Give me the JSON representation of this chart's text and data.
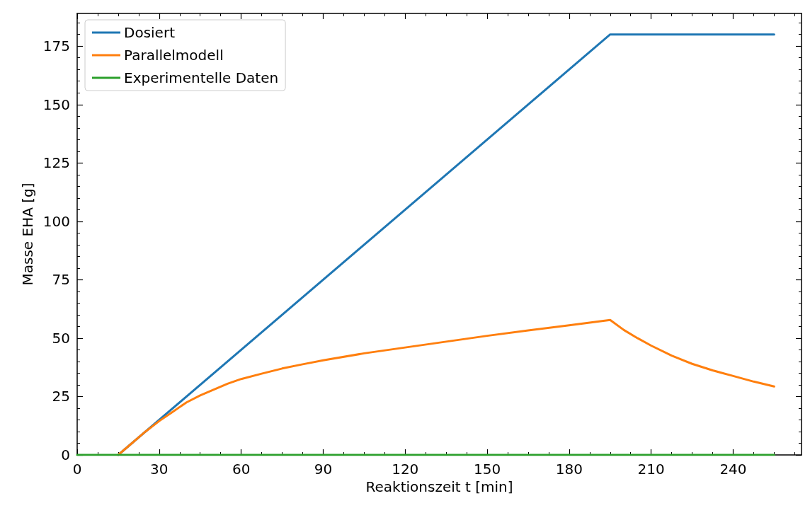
{
  "chart_data": {
    "type": "line",
    "xlabel": "Reaktionszeit t [min]",
    "ylabel": "Masse EHA [g]",
    "xlim": [
      0,
      265
    ],
    "xticks": [
      0,
      30,
      60,
      90,
      120,
      150,
      180,
      210,
      240
    ],
    "ylim": [
      0,
      189
    ],
    "yticks": [
      0,
      25,
      50,
      75,
      100,
      125,
      150,
      175
    ],
    "grid": false,
    "legend": "top left",
    "marker": "none",
    "line_style": "solid",
    "series": [
      {
        "name": "Dosiert",
        "color": "#1f77b4",
        "x": [
          15,
          195,
          255
        ],
        "values": [
          0,
          180,
          180
        ]
      },
      {
        "name": "Parallelmodell",
        "color": "#ff7f0e",
        "x": [
          15,
          20,
          25,
          30,
          35,
          40,
          45,
          50,
          55,
          60,
          67.5,
          75,
          82.5,
          90,
          105,
          120,
          135,
          150,
          165,
          180,
          195,
          200,
          205,
          210,
          217.5,
          225,
          232.5,
          240,
          247.5,
          255
        ],
        "values": [
          0,
          5,
          10,
          14.5,
          18.5,
          22.5,
          25.5,
          28,
          30.5,
          32.5,
          34.8,
          37,
          38.8,
          40.5,
          43.5,
          46,
          48.5,
          51,
          53.3,
          55.5,
          57.8,
          53.5,
          50,
          46.8,
          42.5,
          39,
          36.2,
          33.8,
          31.4,
          29.3
        ]
      },
      {
        "name": "Experimentelle Daten",
        "color": "#2ca02c",
        "x": [
          0,
          255
        ],
        "values": [
          0,
          0
        ]
      }
    ]
  }
}
